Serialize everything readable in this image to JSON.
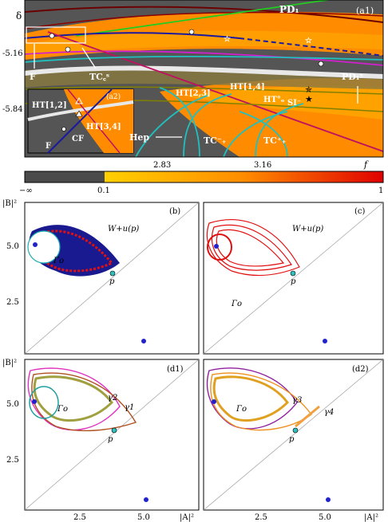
{
  "figure": {
    "panel_a1": {
      "tag": "(a1)",
      "inset_tag": "(a2)",
      "y_axis_label": "δ",
      "y_ticks": [
        "-5.16",
        "-5.84"
      ],
      "labels": {
        "pd1": "PD₁",
        "pd1s": "PD₁ˢ",
        "F": "F",
        "F2": "F",
        "TCc": "TC꜀ˢ",
        "HT23": "HT[2,3]",
        "HT14": "HT[1,4]",
        "HTo": "HT°ₒ",
        "SI": "SI⁻",
        "HT12": "HT[1,2]",
        "HT34": "HT[3,4]",
        "CF": "CF",
        "Hep": "Hep",
        "TCm": "TC⁻₊",
        "TCp": "TC⁺₊"
      }
    },
    "colorbar": {
      "tick_top": [
        "2.83",
        "3.16"
      ],
      "f_label": "f",
      "tick_bottom": [
        "−∞",
        "0.1",
        "1"
      ],
      "colors": [
        "#4a4a4a",
        "#ffd700",
        "#ff8c00",
        "#e00000"
      ]
    },
    "panels": [
      {
        "tag": "(b)",
        "labels": [
          "W+u(p)",
          "Γo",
          "p"
        ]
      },
      {
        "tag": "(c)",
        "labels": [
          "W+u(p)",
          "Γo",
          "p"
        ]
      },
      {
        "tag": "(d1)",
        "labels": [
          "γ2",
          "γ1",
          "Γo",
          "p"
        ]
      },
      {
        "tag": "(d2)",
        "labels": [
          "γ3",
          "γ4",
          "Γo",
          "p"
        ]
      }
    ],
    "axes": {
      "y_label": "|B|²",
      "x_label": "|A|²",
      "y_ticks": [
        "5.0",
        "2.5"
      ],
      "x_ticks": [
        "2.5",
        "5.0"
      ]
    }
  }
}
